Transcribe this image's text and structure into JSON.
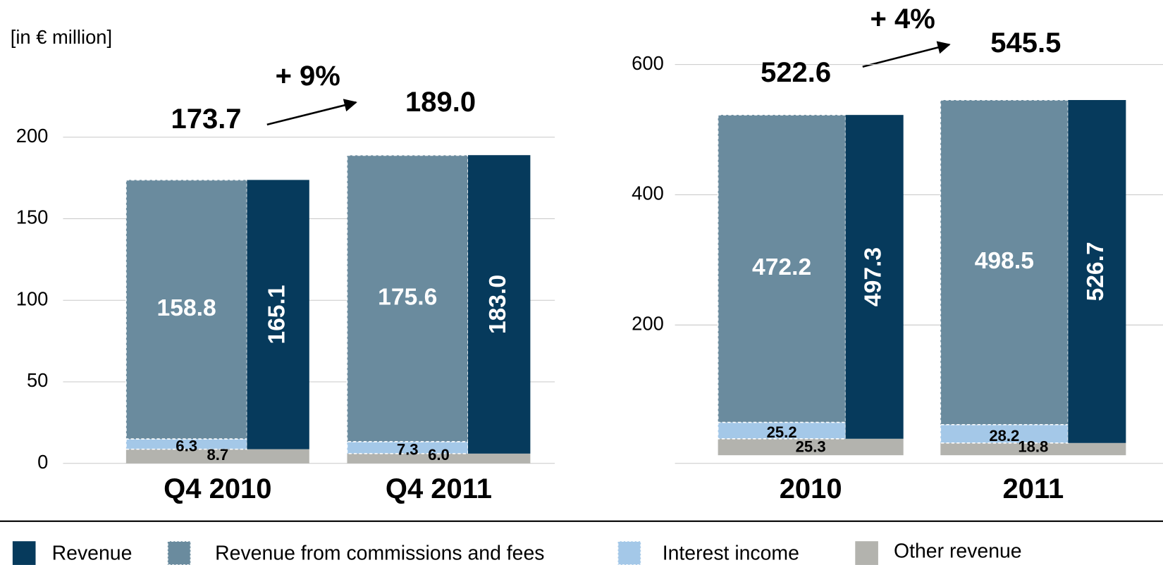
{
  "chart_data": [
    {
      "type": "bar",
      "unit_label": "[in € million]",
      "categories": [
        "Q4 2010",
        "Q4 2011"
      ],
      "series": [
        {
          "name": "Other revenue",
          "color": "#b3b3ae",
          "values": [
            8.7,
            6.0
          ],
          "value_labels": [
            "8.7",
            "6.0"
          ]
        },
        {
          "name": "Interest income",
          "color": "#a4c8e8",
          "values": [
            6.3,
            7.3
          ],
          "value_labels": [
            "6.3",
            "7.3"
          ]
        },
        {
          "name": "Revenue from commissions and fees",
          "color": "#6a8b9e",
          "values": [
            158.8,
            175.6
          ],
          "value_labels": [
            "158.8",
            "175.6"
          ]
        },
        {
          "name": "Revenue",
          "color": "#063a5c",
          "values": [
            165.1,
            183.0
          ],
          "value_labels": [
            "165.1",
            "183.0"
          ]
        }
      ],
      "totals": [
        173.7,
        189.0
      ],
      "total_labels": [
        "173.7",
        "189.0"
      ],
      "annotation": "+ 9%",
      "ylim": [
        0,
        200
      ],
      "yticks": [
        0,
        50,
        100,
        150,
        200
      ],
      "grid": true
    },
    {
      "type": "bar",
      "categories": [
        "2010",
        "2011"
      ],
      "series": [
        {
          "color": "#b3b3ae",
          "values": [
            25.3,
            18.8
          ],
          "value_labels": [
            "25.3",
            "18.8"
          ]
        },
        {
          "color": "#a4c8e8",
          "values": [
            25.2,
            28.2
          ],
          "value_labels": [
            "25.2",
            "28.2"
          ]
        },
        {
          "color": "#6a8b9e",
          "values": [
            472.2,
            498.5
          ],
          "value_labels": [
            "472.2",
            "498.5"
          ]
        },
        {
          "color": "#063a5c",
          "values": [
            497.3,
            526.7
          ],
          "value_labels": [
            "497.3",
            "526.7"
          ]
        }
      ],
      "totals": [
        522.6,
        545.5
      ],
      "total_labels": [
        "522.6",
        "545.5"
      ],
      "annotation": "+ 4%",
      "ylim": [
        0,
        600
      ],
      "yticks": [
        200,
        400,
        600
      ],
      "grid": true
    }
  ]
}
